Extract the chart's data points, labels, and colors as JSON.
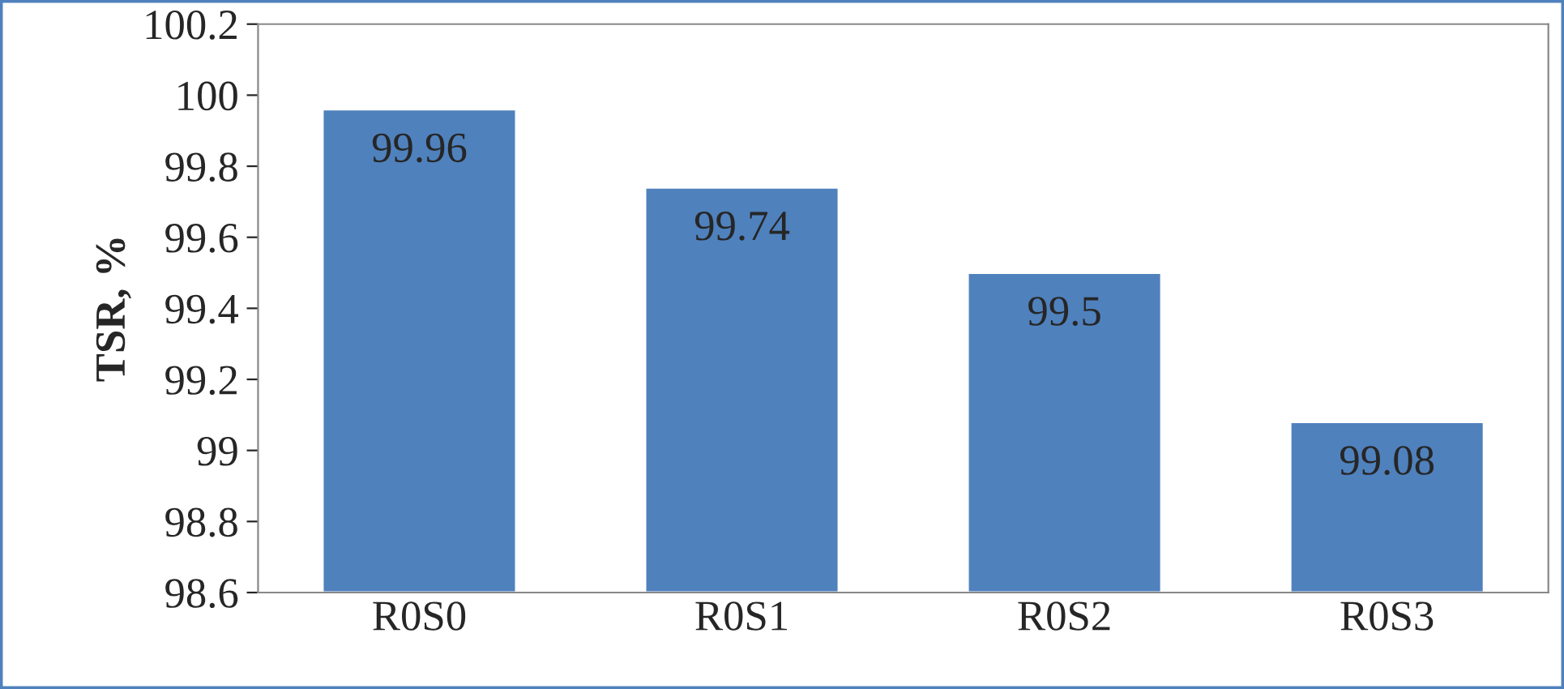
{
  "chart_data": {
    "type": "bar",
    "ylabel": "TSR, %",
    "categories": [
      "R0S0",
      "R0S1",
      "R0S2",
      "R0S3"
    ],
    "values": [
      99.96,
      99.74,
      99.5,
      99.08
    ],
    "color": "#4f81bd",
    "ylim": [
      98.6,
      100.2
    ],
    "yticks": [
      98.6,
      98.8,
      99,
      99.2,
      99.4,
      99.6,
      99.8,
      100,
      100.2
    ],
    "data_labels": true,
    "grid": false,
    "legend": false
  }
}
